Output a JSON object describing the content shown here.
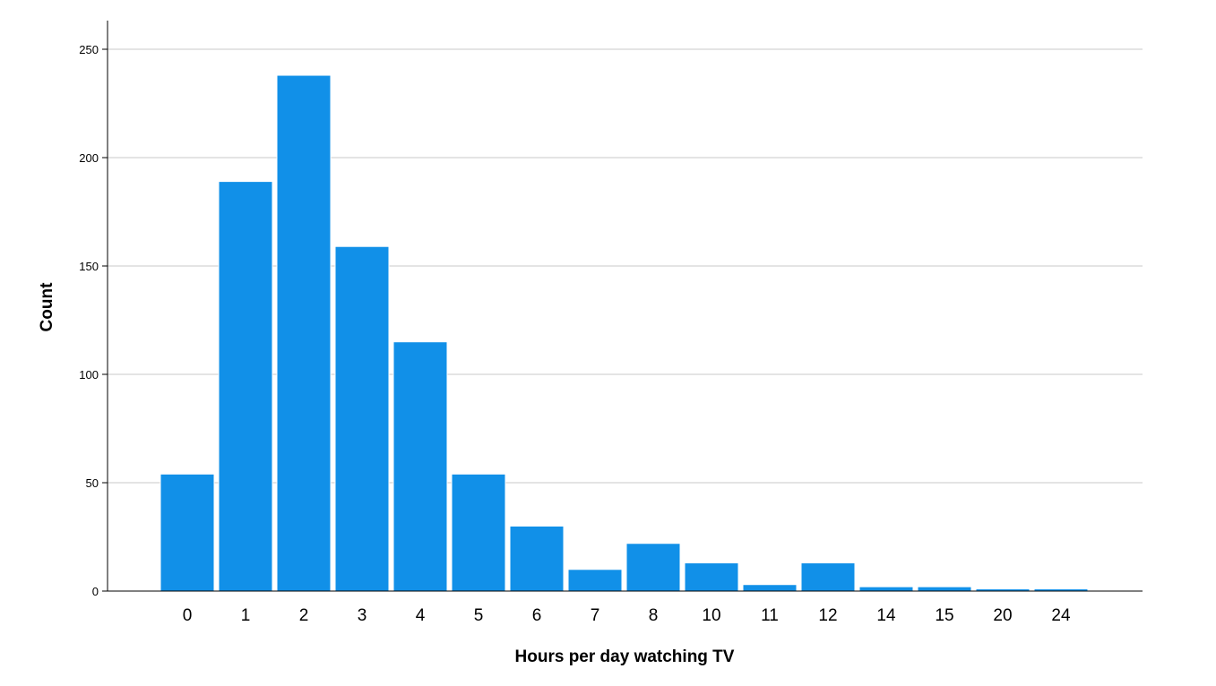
{
  "chart_data": {
    "type": "bar",
    "title": "",
    "xlabel": "Hours per day watching TV",
    "ylabel": "Count",
    "categories": [
      "0",
      "1",
      "2",
      "3",
      "4",
      "5",
      "6",
      "7",
      "8",
      "10",
      "11",
      "12",
      "14",
      "15",
      "20",
      "24"
    ],
    "values": [
      54,
      189,
      238,
      159,
      115,
      54,
      30,
      10,
      22,
      13,
      3,
      13,
      2,
      2,
      1,
      1
    ],
    "ylim": [
      0,
      250
    ],
    "yticks": [
      0,
      50,
      100,
      150,
      200,
      250
    ],
    "grid": "horizontal",
    "legend": "none",
    "bar_color": "#1190e8"
  }
}
